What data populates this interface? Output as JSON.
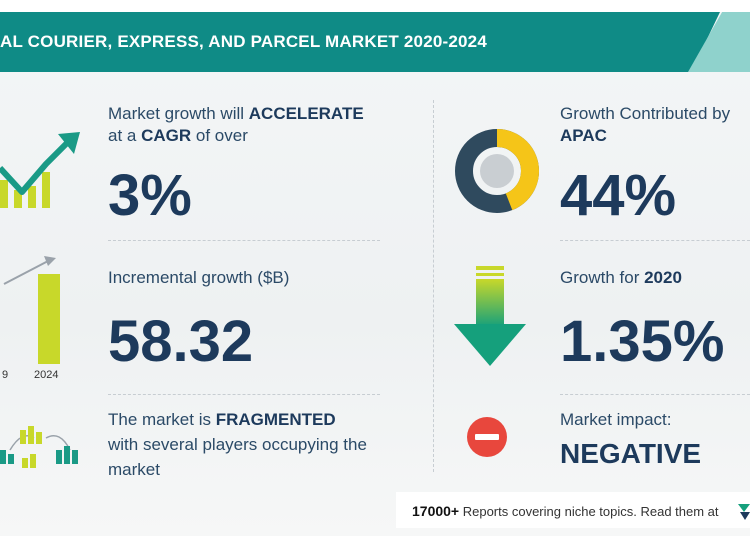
{
  "title": "AL COURIER, EXPRESS, AND PARCEL MARKET 2020-2024",
  "left": {
    "growth": {
      "line1_pre": "Market growth will ",
      "line1_bold": "ACCELERATE",
      "line2_pre": "at a ",
      "line2_bold": "CAGR",
      "line2_post": " of over",
      "value": "3%"
    },
    "incremental": {
      "label": "Incremental growth ($B)",
      "value": "58.32",
      "year_left": "9",
      "year_right": "2024"
    },
    "market": {
      "line1_pre": "The market is ",
      "line1_bold": "FRAGMENTED",
      "line2": "with several players occupying the",
      "line3": "market"
    }
  },
  "right": {
    "contribution": {
      "label": "Growth Contributed by",
      "region": "APAC",
      "value": "44%"
    },
    "growth2020": {
      "label": "Growth for ",
      "year": "2020",
      "value": "1.35%"
    },
    "impact": {
      "label": "Market impact:",
      "value": "NEGATIVE"
    }
  },
  "footer": {
    "count": "17000+",
    "text": " Reports covering niche topics. Read them at"
  },
  "colors": {
    "teal": "#0f8b86",
    "navy": "#1d3a5c",
    "yellow": "#f5c518",
    "lime": "#c8d82a",
    "green": "#15a07c",
    "red": "#e8473d"
  },
  "icons": [
    "trend-chart-icon",
    "bar-growth-icon",
    "buildings-network-icon",
    "donut-chart-icon",
    "down-arrow-icon",
    "minus-circle-icon"
  ]
}
